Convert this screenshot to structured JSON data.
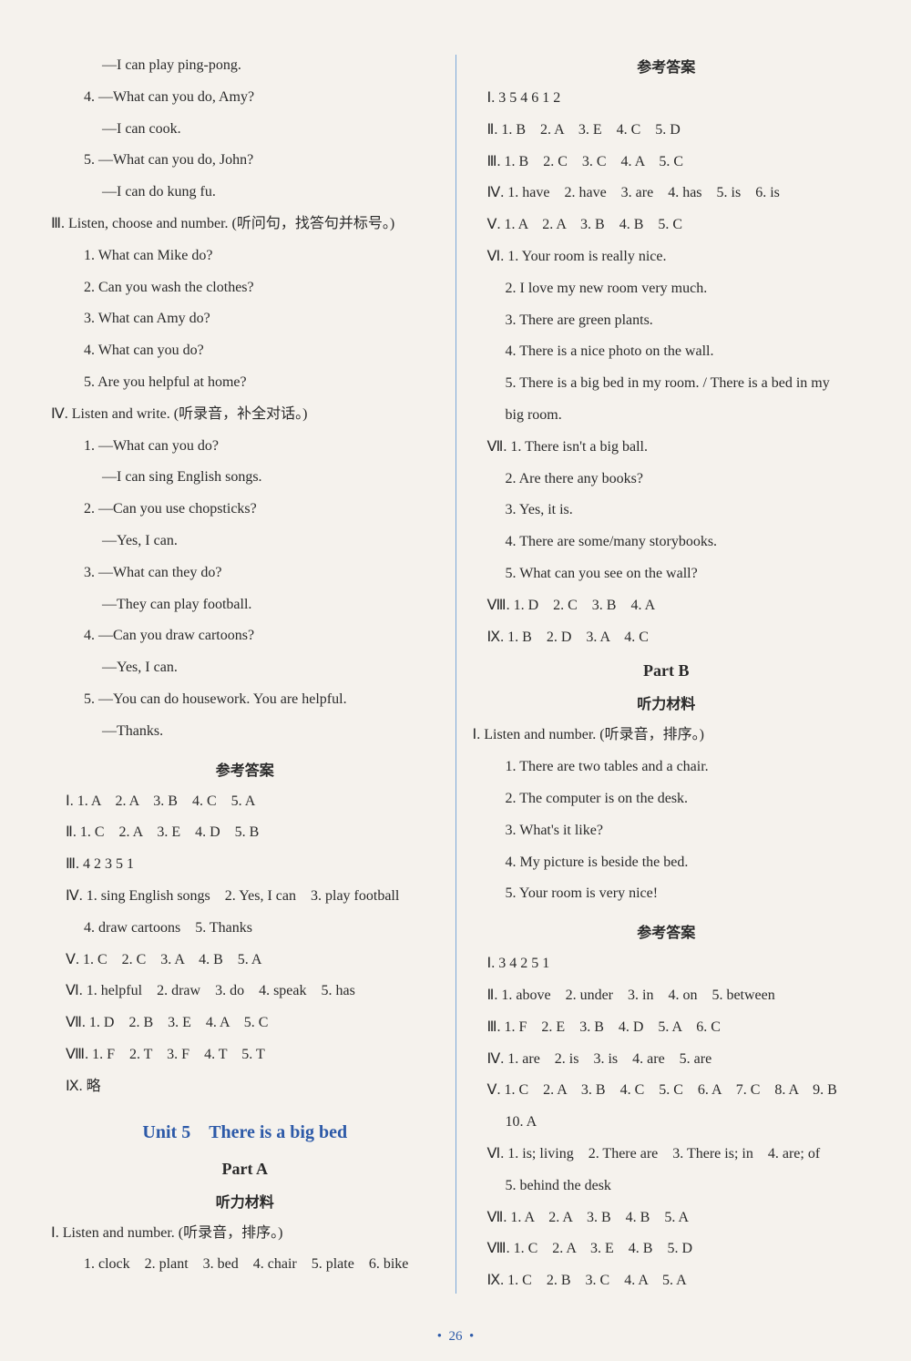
{
  "left": {
    "top_dialogs": [
      "—I can play ping-pong.",
      "4. —What can you do, Amy?",
      "—I can cook.",
      "5. —What can you do, John?",
      "—I can do kung fu."
    ],
    "sec3_title": "Ⅲ. Listen, choose and number. (听问句，找答句并标号。)",
    "sec3_items": [
      "1. What can Mike do?",
      "2. Can you wash the clothes?",
      "3. What can Amy do?",
      "4. What can you do?",
      "5. Are you helpful at home?"
    ],
    "sec4_title": "Ⅳ. Listen and write. (听录音，补全对话。)",
    "sec4_items": [
      "1. —What can you do?",
      "—I can sing English songs.",
      "2. —Can you use chopsticks?",
      "—Yes, I can.",
      "3. —What can they do?",
      "—They can play football.",
      "4. —Can you draw cartoons?",
      "—Yes, I can.",
      "5. —You can do housework. You are helpful.",
      "—Thanks."
    ],
    "answer_title": "参考答案",
    "answers": [
      "Ⅰ. 1. A　2. A　3. B　4. C　5. A",
      "Ⅱ. 1. C　2. A　3. E　4. D　5. B",
      "Ⅲ. 4 2 3 5 1",
      "Ⅳ. 1. sing English songs　2. Yes, I can　3. play football",
      "4. draw cartoons　5. Thanks",
      "Ⅴ. 1. C　2. C　3. A　4. B　5. A",
      "Ⅵ. 1. helpful　2. draw　3. do　4. speak　5. has",
      "Ⅶ. 1. D　2. B　3. E　4. A　5. C",
      "Ⅷ. 1. F　2. T　3. F　4. T　5. T",
      "Ⅸ. 略"
    ],
    "unit_title": "Unit 5　There is a big bed",
    "part_a_title": "Part A",
    "listen_title": "听力材料",
    "partA_sec1_title": "Ⅰ. Listen and number. (听录音，排序。)",
    "partA_sec1_items": "1. clock　2. plant　3. bed　4. chair　5. plate　6. bike"
  },
  "right": {
    "answer_title": "参考答案",
    "answers_top": [
      "Ⅰ. 3 5 4 6 1 2",
      "Ⅱ. 1. B　2. A　3. E　4. C　5. D",
      "Ⅲ. 1. B　2. C　3. C　4. A　5. C",
      "Ⅳ. 1. have　2. have　3. are　4. has　5. is　6. is",
      "Ⅴ. 1. A　2. A　3. B　4. B　5. C"
    ],
    "sec6_items": [
      "Ⅵ. 1. Your room is really nice.",
      "2. I love my new room very much.",
      "3. There are green plants.",
      "4. There is a nice photo on the wall.",
      "5. There is a big bed in my room. / There is a bed in my",
      "big room."
    ],
    "sec7_items": [
      "Ⅶ. 1. There isn't a big ball.",
      "2. Are there any books?",
      "3. Yes, it is.",
      "4. There are some/many storybooks.",
      "5. What can you see on the wall?"
    ],
    "answers_mid": [
      "Ⅷ. 1. D　2. C　3. B　4. A",
      "Ⅸ. 1. B　2. D　3. A　4. C"
    ],
    "part_b_title": "Part B",
    "listen_title": "听力材料",
    "partB_sec1_title": "Ⅰ. Listen and number. (听录音，排序。)",
    "partB_sec1_items": [
      "1. There are two tables and a chair.",
      "2. The computer is on the desk.",
      "3. What's it like?",
      "4. My picture is beside the bed.",
      "5. Your room is very nice!"
    ],
    "answer_title2": "参考答案",
    "answers_bottom": [
      "Ⅰ. 3 4 2 5 1",
      "Ⅱ. 1. above　2. under　3. in　4. on　5. between",
      "Ⅲ. 1. F　2. E　3. B　4. D　5. A　6. C",
      "Ⅳ. 1. are　2. is　3. is　4. are　5. are",
      "Ⅴ. 1. C　2. A　3. B　4. C　5. C　6. A　7. C　8. A　9. B",
      "10. A",
      "Ⅵ. 1. is; living　2. There are　3. There is; in　4. are; of",
      "5. behind the desk",
      "Ⅶ. 1. A　2. A　3. B　4. B　5. A",
      "Ⅷ. 1. C　2. A　3. E　4. B　5. D",
      "Ⅸ. 1. C　2. B　3. C　4. A　5. A"
    ]
  },
  "page_number": "26",
  "colors": {
    "background": "#f5f2ed",
    "text": "#2a2a2a",
    "accent": "#2d5aa8",
    "divider": "#7aa8d8"
  }
}
